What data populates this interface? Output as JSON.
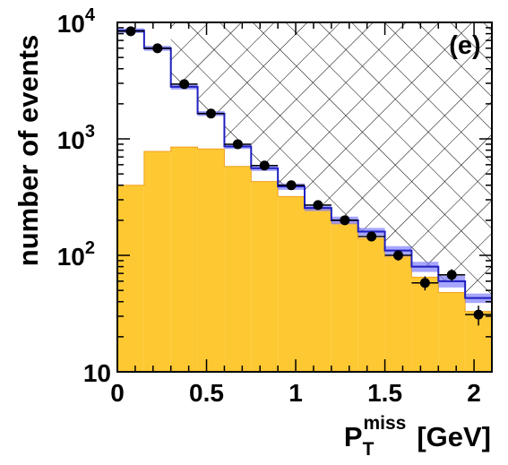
{
  "chart_data": {
    "type": "histogram",
    "panel_label": "(e)",
    "ylabel": "number of events",
    "xlabel": {
      "main": "P",
      "subscript": "T",
      "superscript": "miss",
      "unit": "[GeV]"
    },
    "xlim": [
      0,
      2.1
    ],
    "ylim": [
      10,
      10000
    ],
    "y_scale": "log",
    "bin_edges": [
      0,
      0.15,
      0.3,
      0.45,
      0.6,
      0.75,
      0.9,
      1.05,
      1.2,
      1.35,
      1.5,
      1.65,
      1.8,
      1.95,
      2.1
    ],
    "x_ticks": [
      "0",
      "0.5",
      "1",
      "1.5",
      "2"
    ],
    "x_tick_values": [
      0,
      0.5,
      1,
      1.5,
      2
    ],
    "y_ticks": [
      {
        "value": 10,
        "base": "10",
        "exp": ""
      },
      {
        "value": 100,
        "base": "10",
        "exp": "2"
      },
      {
        "value": 1000,
        "base": "10",
        "exp": "3"
      },
      {
        "value": 10000,
        "base": "10",
        "exp": "4"
      }
    ],
    "hatched_region": {
      "x_from": 0.3,
      "style": "crosshatch"
    },
    "colors": {
      "background": "#FEC832",
      "total": "#1f1fbf",
      "uncertainty_band": "#8080ff",
      "data": "#000000"
    },
    "series": [
      {
        "kind": "stacked-fill",
        "values": [
          400,
          780,
          850,
          820,
          580,
          430,
          320,
          250,
          190,
          140,
          97,
          65,
          48,
          33
        ]
      },
      {
        "kind": "step-with-band",
        "values": [
          8500,
          6000,
          2800,
          1650,
          860,
          560,
          390,
          255,
          200,
          160,
          110,
          80,
          60,
          43
        ],
        "band_low": [
          8100,
          5700,
          2650,
          1570,
          820,
          530,
          365,
          240,
          185,
          148,
          100,
          72,
          53,
          39
        ],
        "band_high": [
          8900,
          6300,
          2950,
          1730,
          900,
          590,
          415,
          270,
          215,
          172,
          120,
          88,
          67,
          47
        ]
      },
      {
        "kind": "points",
        "x": [
          0.075,
          0.225,
          0.375,
          0.525,
          0.675,
          0.825,
          0.975,
          1.125,
          1.275,
          1.425,
          1.575,
          1.725,
          1.875,
          2.025
        ],
        "y": [
          8400,
          6000,
          2950,
          1650,
          900,
          590,
          400,
          270,
          200,
          145,
          100,
          58,
          68,
          31
        ],
        "y_err_low": [
          90,
          80,
          55,
          40,
          30,
          24,
          20,
          16,
          14,
          12,
          10,
          8,
          8,
          6
        ],
        "y_err_high": [
          90,
          80,
          55,
          40,
          30,
          24,
          20,
          16,
          14,
          12,
          10,
          8,
          8,
          6
        ],
        "x_err": 0.075
      }
    ]
  }
}
